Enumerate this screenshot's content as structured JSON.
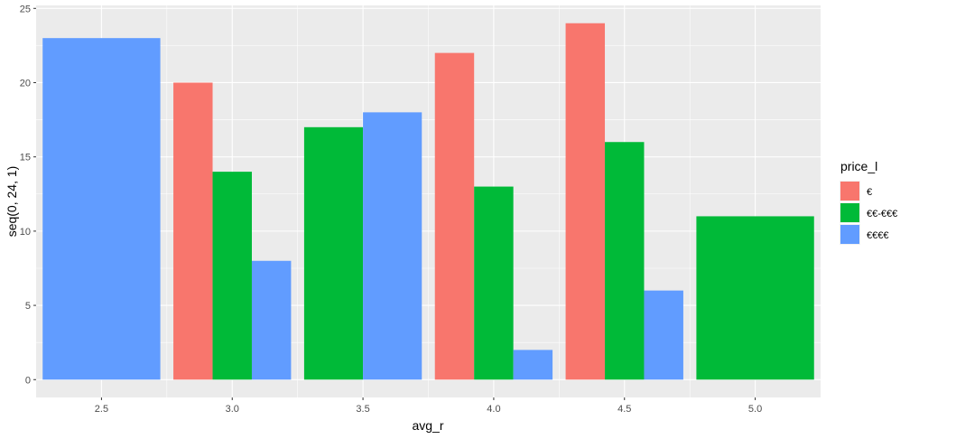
{
  "chart_data": {
    "type": "bar",
    "position": "dodge",
    "xlabel": "avg_r",
    "ylabel": "seq(0, 24, 1)",
    "xlim": [
      2.25,
      5.25
    ],
    "ylim": [
      -1.2,
      25.2
    ],
    "x_ticks": [
      2.5,
      3.0,
      3.5,
      4.0,
      4.5,
      5.0
    ],
    "x_tick_labels": [
      "2.5",
      "3.0",
      "3.5",
      "4.0",
      "4.5",
      "5.0"
    ],
    "y_ticks": [
      0,
      5,
      10,
      15,
      20,
      25
    ],
    "y_tick_labels": [
      "0",
      "5",
      "10",
      "15",
      "20",
      "25"
    ],
    "bar_width_data_units": 0.45,
    "legend": {
      "title": "price_l",
      "placement": "right",
      "entries": [
        {
          "label": "€",
          "color": "#F8766D"
        },
        {
          "label": "€€-€€€",
          "color": "#00BA38"
        },
        {
          "label": "€€€€",
          "color": "#619CFF"
        }
      ]
    },
    "series": [
      {
        "name": "€",
        "color": "#F8766D",
        "points": [
          {
            "x": 3.0,
            "y": 20
          },
          {
            "x": 4.0,
            "y": 22
          },
          {
            "x": 4.5,
            "y": 24
          }
        ]
      },
      {
        "name": "€€-€€€",
        "color": "#00BA38",
        "points": [
          {
            "x": 3.0,
            "y": 14
          },
          {
            "x": 3.5,
            "y": 17
          },
          {
            "x": 4.0,
            "y": 13
          },
          {
            "x": 4.5,
            "y": 16
          },
          {
            "x": 5.0,
            "y": 11
          }
        ]
      },
      {
        "name": "€€€€",
        "color": "#619CFF",
        "points": [
          {
            "x": 2.5,
            "y": 23
          },
          {
            "x": 3.0,
            "y": 8
          },
          {
            "x": 3.5,
            "y": 18
          },
          {
            "x": 4.0,
            "y": 2
          },
          {
            "x": 4.5,
            "y": 6
          }
        ]
      }
    ],
    "panel_background": "#EBEBEB",
    "gridline_color": "#FFFFFF",
    "grid": true
  }
}
